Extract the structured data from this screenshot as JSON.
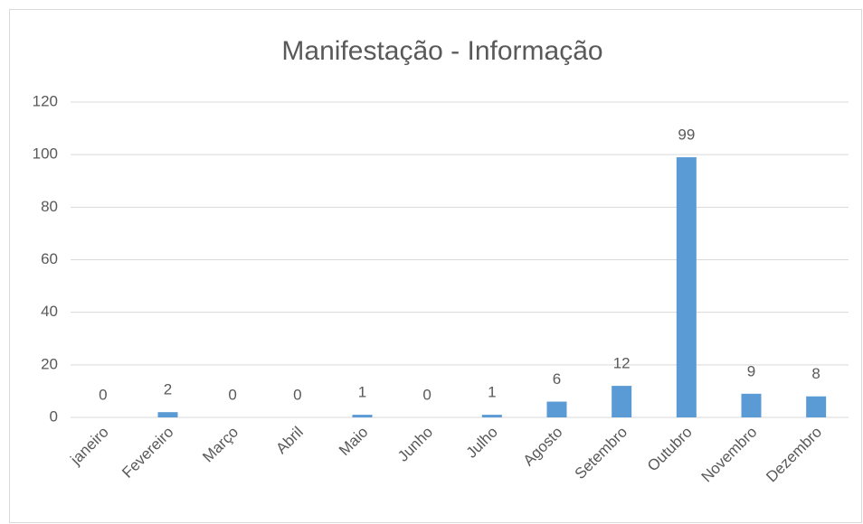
{
  "chart_data": {
    "type": "bar",
    "title": "Manifestação - Informação",
    "categories": [
      "janeiro",
      "Fevereiro",
      "Março",
      "Abril",
      "Maio",
      "Junho",
      "Julho",
      "Agosto",
      "Setembro",
      "Outubro",
      "Novembro",
      "Dezembro"
    ],
    "values": [
      0,
      2,
      0,
      0,
      1,
      0,
      1,
      6,
      12,
      99,
      9,
      8
    ],
    "color": "#5b9bd5",
    "ylim": [
      0,
      120
    ],
    "yticks": [
      0,
      20,
      40,
      60,
      80,
      100,
      120
    ],
    "grid": true
  }
}
